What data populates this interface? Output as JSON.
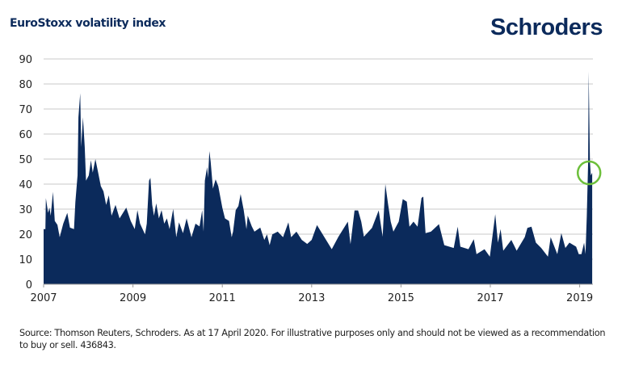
{
  "title": "EuroStoxx volatility index",
  "logo": "Schroders",
  "footer": {
    "source": "Source: Thomson Reuters, Schroders.  As at 17 April 2020. For illustrative purposes only and should not be viewed as a recommendation to buy or sell. 436843."
  },
  "chart_data": {
    "type": "area",
    "title": "EuroStoxx volatility index",
    "xlabel": "",
    "ylabel": "",
    "xlim": [
      2007,
      2019.3
    ],
    "ylim": [
      0,
      90
    ],
    "x_ticks": [
      "2007",
      "2009",
      "2011",
      "2013",
      "2015",
      "2017",
      "2019"
    ],
    "y_ticks": [
      "0",
      "10",
      "20",
      "30",
      "40",
      "50",
      "60",
      "70",
      "80",
      "90"
    ],
    "grid": "horizontal",
    "legend": "none",
    "colors": {
      "area": "#0b2a5b",
      "grid": "#c8c8c8",
      "annotation": "#6cbf3a"
    },
    "annotation": {
      "shape": "circle",
      "x": 2019.21,
      "y": 44.5
    },
    "series": [
      {
        "x": [
          2007.0,
          2007.04,
          2007.05,
          2007.1,
          2007.13,
          2007.16,
          2007.21,
          2007.25,
          2007.31,
          2007.36,
          2007.44,
          2007.53,
          2007.59,
          2007.68,
          2007.71,
          2007.76,
          2007.78,
          2007.82,
          2007.84,
          2007.88,
          2007.92,
          2007.95,
          2008.01,
          2008.06,
          2008.1,
          2008.16,
          2008.22,
          2008.28,
          2008.34,
          2008.4,
          2008.46,
          2008.52,
          2008.61,
          2008.7,
          2008.85,
          2008.95,
          2009.04,
          2009.1,
          2009.16,
          2009.27,
          2009.31,
          2009.36,
          2009.39,
          2009.43,
          2009.47,
          2009.52,
          2009.58,
          2009.64,
          2009.7,
          2009.76,
          2009.82,
          2009.9,
          2009.97,
          2010.03,
          2010.12,
          2010.2,
          2010.31,
          2010.4,
          2010.49,
          2010.55,
          2010.58,
          2010.61,
          2010.66,
          2010.68,
          2010.71,
          2010.74,
          2010.79,
          2010.85,
          2010.91,
          2011.0,
          2011.06,
          2011.15,
          2011.21,
          2011.24,
          2011.3,
          2011.36,
          2011.41,
          2011.48,
          2011.54,
          2011.57,
          2011.66,
          2011.72,
          2011.85,
          2011.94,
          2012.0,
          2012.06,
          2012.12,
          2012.24,
          2012.36,
          2012.48,
          2012.54,
          2012.66,
          2012.78,
          2012.9,
          2013.0,
          2013.12,
          2013.45,
          2013.6,
          2013.81,
          2013.87,
          2013.96,
          2014.04,
          2014.11,
          2014.17,
          2014.35,
          2014.5,
          2014.59,
          2014.65,
          2014.71,
          2014.77,
          2014.83,
          2014.95,
          2015.04,
          2015.13,
          2015.19,
          2015.28,
          2015.37,
          2015.46,
          2015.5,
          2015.55,
          2015.67,
          2015.85,
          2015.97,
          2016.18,
          2016.27,
          2016.33,
          2016.51,
          2016.63,
          2016.69,
          2016.87,
          2016.99,
          2017.11,
          2017.17,
          2017.23,
          2017.29,
          2017.47,
          2017.59,
          2017.77,
          2017.83,
          2017.92,
          2018.02,
          2018.14,
          2018.29,
          2018.35,
          2018.5,
          2018.59,
          2018.68,
          2018.77,
          2018.92,
          2018.98,
          2019.04,
          2019.1,
          2019.13,
          2019.16,
          2019.19,
          2019.2,
          2019.23,
          2019.25,
          2019.28
        ],
        "values": [
          22,
          22,
          34.4,
          28.5,
          30.6,
          27.4,
          36.9,
          25.3,
          23.7,
          18.8,
          24.2,
          28.5,
          22.6,
          22,
          32.8,
          43.5,
          66.7,
          76.3,
          54.8,
          66.7,
          54.8,
          41.4,
          43.5,
          49.5,
          44.6,
          50,
          44.6,
          39.2,
          37.1,
          31.7,
          35.5,
          27.4,
          31.7,
          26.3,
          30.6,
          25.3,
          22,
          29.6,
          24.2,
          19.9,
          24.2,
          41.4,
          42.5,
          31.7,
          27.4,
          32.3,
          26.3,
          29.6,
          24.2,
          26.3,
          22,
          30.1,
          18.8,
          24.7,
          20.4,
          26.3,
          18.8,
          24.2,
          23.1,
          29.6,
          21,
          41.4,
          46.8,
          42.5,
          53.2,
          48.9,
          38.2,
          41.9,
          39.2,
          30.6,
          26.3,
          25.3,
          18.8,
          21,
          29.6,
          31.2,
          36,
          29.6,
          22,
          27.4,
          23.1,
          21,
          22.6,
          17.7,
          19.9,
          15.6,
          19.9,
          21,
          18.8,
          24.7,
          18.8,
          21,
          17.7,
          16.1,
          17.7,
          23.6,
          14,
          19,
          25,
          16,
          29.5,
          29.5,
          25,
          19,
          22.5,
          29.5,
          19,
          40,
          32,
          25,
          21,
          25,
          34,
          33,
          23,
          25,
          23,
          34.5,
          35,
          20.4,
          21,
          24,
          15.6,
          14.5,
          23,
          15,
          14,
          18,
          12,
          14,
          11,
          28,
          16.6,
          22,
          13.4,
          17.7,
          13.4,
          18.8,
          22.5,
          23,
          16.6,
          14.5,
          11,
          18.8,
          12,
          20.4,
          14.5,
          16.6,
          15,
          12,
          12,
          16.6,
          12,
          27,
          49,
          85,
          49,
          43.5,
          44.5
        ]
      }
    ]
  }
}
